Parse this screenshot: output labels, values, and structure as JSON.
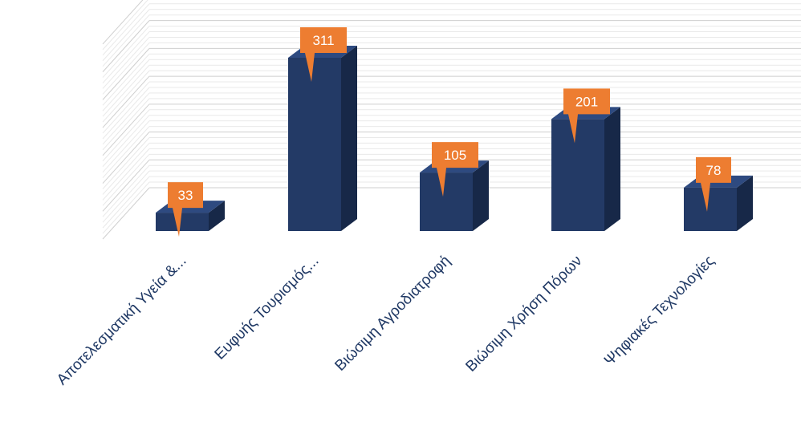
{
  "chart_data": {
    "type": "bar",
    "style": "3d-column",
    "categories": [
      "Αποτελεσματική Υγεία &...",
      "Ευφυής Τουρισμός...",
      "Βιώσιμη Αγροδιατροφή",
      "Βιώσιμη Χρήση Πόρων",
      "Ψηφιακές Τεχνολογίες"
    ],
    "values": [
      33,
      311,
      105,
      201,
      78
    ],
    "data_labels": [
      "33",
      "311",
      "105",
      "201",
      "78"
    ],
    "ylim": [
      0,
      350
    ],
    "grid": true,
    "legend": "none",
    "colors": {
      "bar_front": "#233a66",
      "bar_top": "#2e4a80",
      "bar_side": "#172848",
      "label_bg": "#ed7d31",
      "label_text": "#ffffff",
      "grid": "#d9d9d9",
      "tick_text": "#1f3864"
    }
  }
}
